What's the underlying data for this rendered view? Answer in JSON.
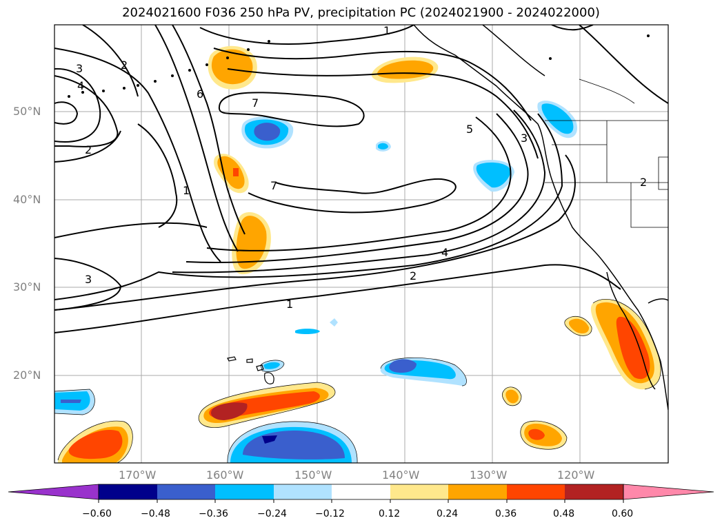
{
  "title": "2024021600 F036 250 hPa PV, precipitation PC (2024021900 - 2024022000)",
  "lat_labels": [
    "50°N",
    "40°N",
    "30°N",
    "20°N"
  ],
  "lon_labels": [
    "170°W",
    "160°W",
    "150°W",
    "140°W",
    "130°W",
    "120°W"
  ],
  "contour_labels": [
    "1",
    "2",
    "3",
    "4",
    "5",
    "6",
    "7"
  ],
  "colorbar": {
    "ticks": [
      "−0.60",
      "−0.48",
      "−0.36",
      "−0.24",
      "−0.12",
      "0.12",
      "0.24",
      "0.36",
      "0.48",
      "0.60"
    ],
    "colors": [
      "#9932CC",
      "#00008B",
      "#3A5FCD",
      "#00BFFF",
      "#B0E2FF",
      "#FFFFFF",
      "#FFE88C",
      "#FFA500",
      "#FF4500",
      "#B22222",
      "#FF88AA"
    ]
  }
}
